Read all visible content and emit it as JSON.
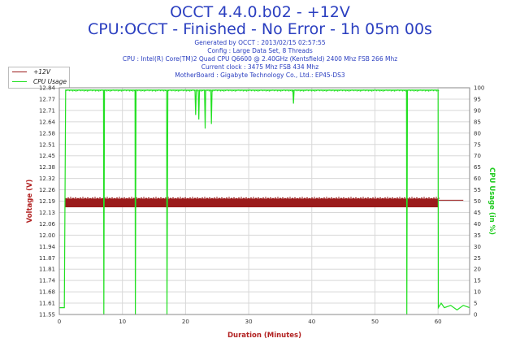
{
  "header": {
    "title": "OCCT 4.4.0.b02 - +12V",
    "subtitle": "CPU:OCCT - Finished - No Error - 1h 05m 00s",
    "info_lines": [
      "Generated by OCCT : 2013/02/15 02:57:55",
      "Config : Large Data Set, 8 Threads",
      "CPU : Intel(R) Core(TM)2 Quad CPU Q6600 @ 2.40GHz (Kentsfield) 2400 Mhz FSB 266 Mhz",
      "Current clock : 3475 Mhz FSB 434 Mhz",
      "MotherBoard : Gigabyte Technology Co., Ltd.: EP45-DS3"
    ]
  },
  "colors": {
    "voltage": "#9b1b1b",
    "cpu": "#22e022",
    "axis_left_label": "#b22222",
    "axis_right_label": "#22cc22",
    "axis_bottom_label": "#b22222",
    "grid": "#d8d8d8",
    "text": "#2b3fc0"
  },
  "legend": {
    "items": [
      {
        "label": "+12V",
        "color": "#9b1b1b"
      },
      {
        "label": "CPU Usage",
        "color": "#22e022"
      }
    ]
  },
  "chart_data": {
    "type": "line",
    "xlabel": "Duration (Minutes)",
    "ylabel": "Voltage (V)",
    "y2label": "CPU Usage (in %)",
    "xlim": [
      0,
      65
    ],
    "ylim": [
      11.55,
      12.84
    ],
    "y2lim": [
      0,
      100
    ],
    "x_ticks": [
      0,
      10,
      20,
      30,
      40,
      50,
      60
    ],
    "y_ticks": [
      "11.55",
      "11.61",
      "11.68",
      "11.74",
      "11.81",
      "11.87",
      "11.94",
      "12.00",
      "12.06",
      "12.13",
      "12.19",
      "12.26",
      "12.32",
      "12.38",
      "12.45",
      "12.51",
      "12.58",
      "12.64",
      "12.71",
      "12.77",
      "12.84"
    ],
    "y2_ticks": [
      0,
      5,
      10,
      15,
      20,
      25,
      30,
      35,
      40,
      45,
      50,
      55,
      60,
      65,
      70,
      75,
      80,
      85,
      90,
      95,
      100
    ],
    "grid": true,
    "legend_position": "top-left",
    "series": [
      {
        "name": "+12V",
        "band": [
          12.16,
          12.21
        ],
        "x_range": [
          0,
          60
        ],
        "after_x": [
          60,
          64
        ],
        "after_value": 12.2
      },
      {
        "name": "CPU Usage",
        "points": [
          [
            0.0,
            3
          ],
          [
            0.8,
            3
          ],
          [
            1.0,
            99
          ],
          [
            7.0,
            99
          ],
          [
            7.05,
            0
          ],
          [
            7.15,
            99
          ],
          [
            12.0,
            99
          ],
          [
            12.05,
            0
          ],
          [
            12.15,
            99
          ],
          [
            17.0,
            99
          ],
          [
            17.05,
            0
          ],
          [
            17.2,
            99
          ],
          [
            21.5,
            99
          ],
          [
            21.6,
            88
          ],
          [
            21.7,
            99
          ],
          [
            22.0,
            99
          ],
          [
            22.1,
            86
          ],
          [
            22.2,
            99
          ],
          [
            23.0,
            99
          ],
          [
            23.1,
            82
          ],
          [
            23.2,
            99
          ],
          [
            24.0,
            99
          ],
          [
            24.1,
            84
          ],
          [
            24.2,
            99
          ],
          [
            37.0,
            99
          ],
          [
            37.1,
            93
          ],
          [
            37.2,
            99
          ],
          [
            55.0,
            99
          ],
          [
            55.05,
            0
          ],
          [
            55.15,
            99
          ],
          [
            60.0,
            99
          ],
          [
            60.05,
            3
          ],
          [
            60.5,
            5
          ],
          [
            61.0,
            3
          ],
          [
            62.0,
            4
          ],
          [
            63.0,
            2
          ],
          [
            64.0,
            4
          ],
          [
            65.0,
            3
          ]
        ]
      }
    ]
  }
}
